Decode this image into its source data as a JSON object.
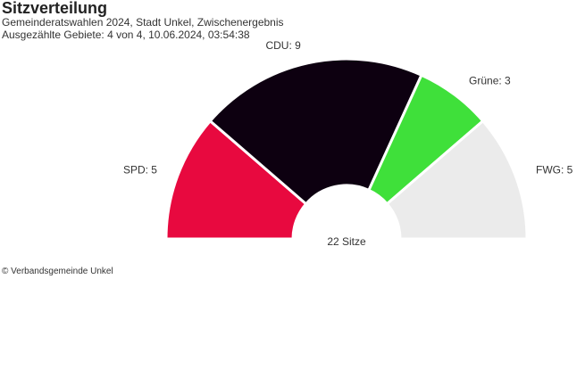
{
  "header": {
    "title": "Sitzverteilung",
    "subtitle": "Gemeinderatswahlen 2024, Stadt Unkel, Zwischenergebnis",
    "status": "Ausgezählte Gebiete: 4 von 4, 10.06.2024, 03:54:38"
  },
  "chart_data": {
    "type": "pie",
    "variant": "parliament-semicircle",
    "total_label": "22 Sitze",
    "categories": [
      "SPD",
      "CDU",
      "Grüne",
      "FWG"
    ],
    "values": [
      5,
      9,
      3,
      5
    ],
    "labels": [
      "SPD: 5",
      "CDU: 9",
      "Grüne: 3",
      "FWG: 5"
    ],
    "colors": [
      "#e8093f",
      "#0d0010",
      "#3fe03a",
      "#ebebeb"
    ]
  },
  "footer": {
    "credit": "© Verbandsgemeinde Unkel"
  }
}
